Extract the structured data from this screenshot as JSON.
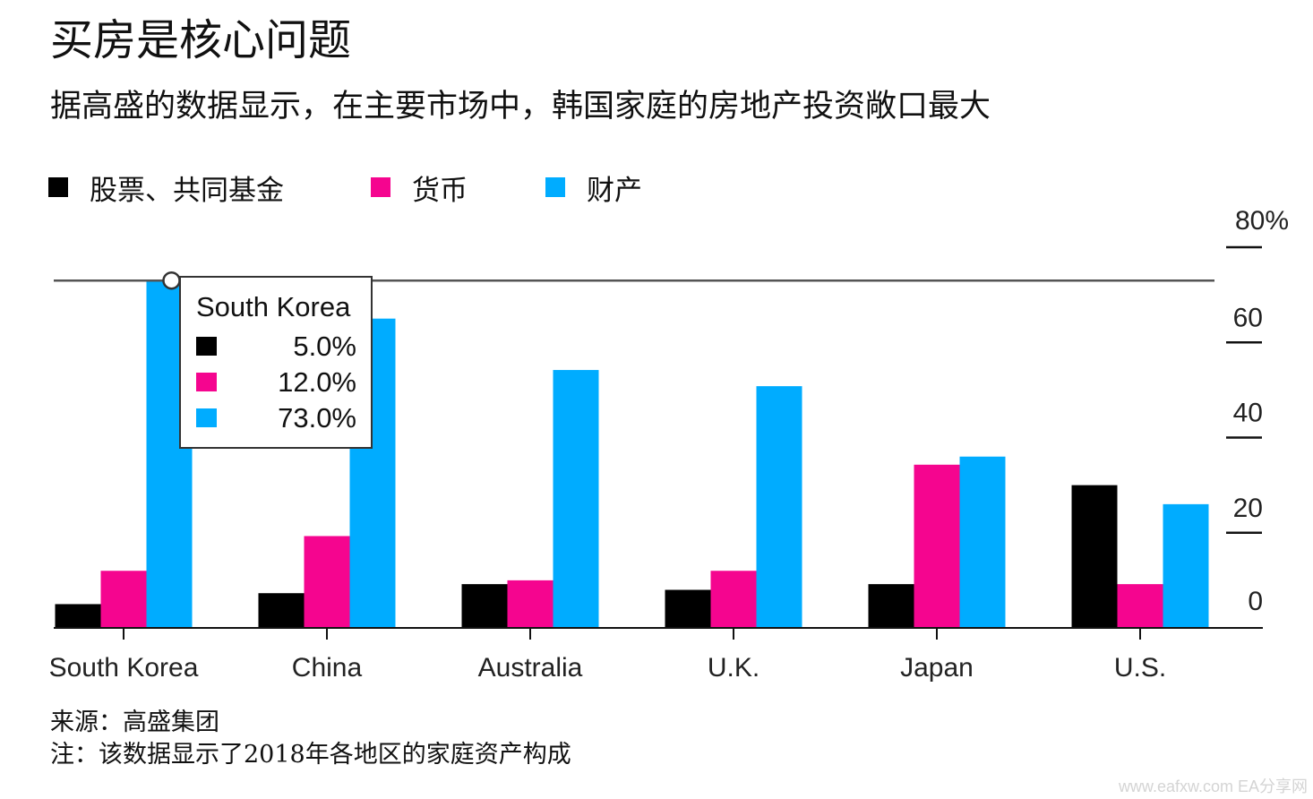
{
  "header": {
    "title": "买房是核心问题",
    "subtitle": "据高盛的数据显示，在主要市场中，韩国家庭的房地产投资敞口最大"
  },
  "legend": [
    {
      "label": "股票、共同基金",
      "color": "#000000"
    },
    {
      "label": "货币",
      "color": "#f5058f"
    },
    {
      "label": "财产",
      "color": "#00acff"
    }
  ],
  "chart_data": {
    "type": "bar",
    "categories": [
      "South Korea",
      "China",
      "Australia",
      "U.K.",
      "Japan",
      "U.S."
    ],
    "series": [
      {
        "name": "股票、共同基金",
        "color": "#000000",
        "values": [
          5.0,
          7.3,
          9.2,
          8.0,
          9.2,
          30.0
        ]
      },
      {
        "name": "货币",
        "color": "#f5058f",
        "values": [
          12.0,
          19.3,
          10.0,
          12.0,
          34.3,
          9.2
        ]
      },
      {
        "name": "财产",
        "color": "#00acff",
        "values": [
          73.0,
          65.0,
          54.2,
          50.8,
          36.0,
          26.0
        ]
      }
    ],
    "ylim": [
      0,
      80
    ],
    "yticks": [
      {
        "value": 0,
        "label": "0"
      },
      {
        "value": 20,
        "label": "20"
      },
      {
        "value": 40,
        "label": "40"
      },
      {
        "value": 60,
        "label": "60"
      },
      {
        "value": 80,
        "label": "80%"
      }
    ],
    "y_axis_side": "right",
    "reference_line": 73.0,
    "grid": false,
    "legend_position": "top-left",
    "tooltip": {
      "category": "South Korea",
      "title": "South Korea",
      "rows": [
        {
          "color": "#000000",
          "value": "5.0%"
        },
        {
          "color": "#f5058f",
          "value": "12.0%"
        },
        {
          "color": "#00acff",
          "value": "73.0%"
        }
      ]
    }
  },
  "footnotes": {
    "source": "来源：高盛集团",
    "note": "注：该数据显示了2018年各地区的家庭资产构成"
  },
  "watermark": "www.eafxw.com  EA分享网"
}
